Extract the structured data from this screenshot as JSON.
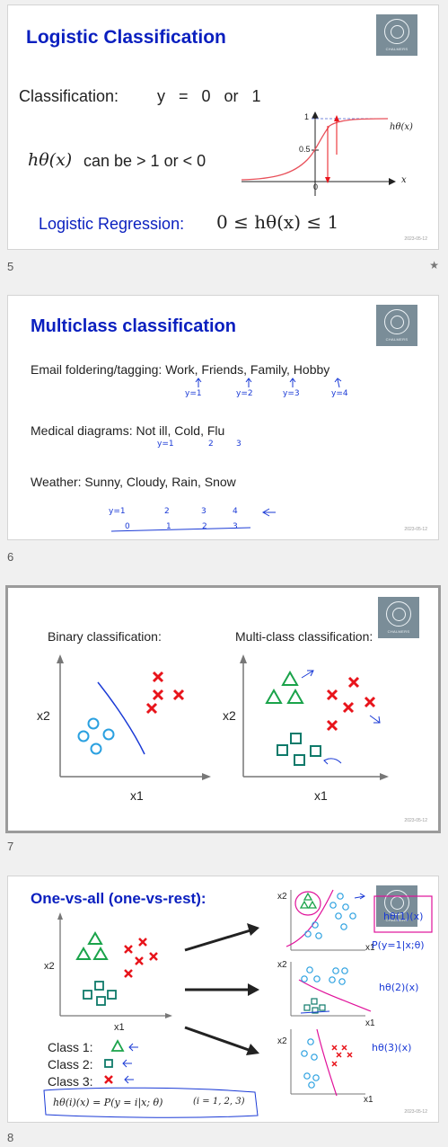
{
  "slides": [
    {
      "number": "5",
      "title": "Logistic Classification",
      "classification_label": "Classification:",
      "classification_expr": "y   =   0   or   1",
      "h_expr": "hθ(x)",
      "h_text": "can be > 1 or < 0",
      "plot_h": "hθ(x)",
      "plot_x": "x",
      "tick_1": "1",
      "tick_05": "0.5",
      "tick_0": "0",
      "logistic_label": "Logistic Regression:",
      "logistic_expr": "0 ≤ hθ(x) ≤ 1",
      "date": "2023-05-12"
    },
    {
      "number": "6",
      "title": "Multiclass classification",
      "line1": "Email foldering/tagging: Work, Friends, Family, Hobby",
      "line2": "Medical diagrams: Not ill, Cold, Flu",
      "line3": "Weather: Sunny, Cloudy, Rain, Snow",
      "hand_email": [
        "y=1",
        "y=2",
        "y=3",
        "y=4"
      ],
      "hand_medical": [
        "y=1",
        "2",
        "3"
      ],
      "hand_weather": [
        "y=1",
        "2",
        "3",
        "4"
      ],
      "hand_weather_axis": [
        "0",
        "1",
        "2",
        "3"
      ],
      "date": "2023-05-12"
    },
    {
      "number": "7",
      "binary_label": "Binary classification:",
      "multi_label": "Multi-class classification:",
      "x1": "x1",
      "x2": "x2",
      "date": "2023-05-12"
    },
    {
      "number": "8",
      "title": "One-vs-all (one-vs-rest):",
      "x1": "x1",
      "x2": "x2",
      "class1": "Class 1:",
      "class2": "Class 2:",
      "class3": "Class 3:",
      "formula": "hθ(i)(x) = P(y = i|x; θ)",
      "formula_range": "(i = 1, 2, 3)",
      "hand_h1": "hθ(1)(x)",
      "hand_p": "P(y=1|x;θ)",
      "hand_h2": "hθ(2)(x)",
      "hand_h3": "hθ(3)(x)",
      "date": "2023-05-12"
    }
  ],
  "logo_text": "CHALMERS",
  "colors": {
    "title": "#0a1fbf",
    "accent_red": "#e8141b",
    "accent_green": "#1aa34a",
    "accent_teal": "#0e7a6a",
    "accent_blue": "#2aa0e0",
    "hand": "#1a3ad6",
    "magenta": "#e0109a"
  }
}
